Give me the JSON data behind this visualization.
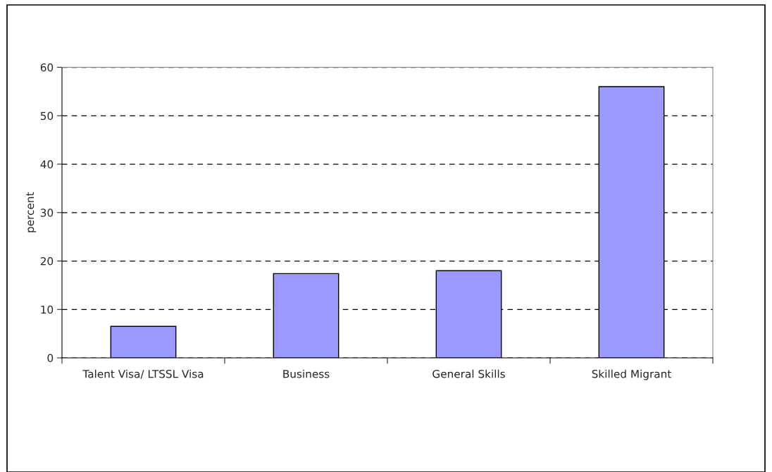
{
  "chart_data": {
    "type": "bar",
    "ylabel": "percent",
    "categories": [
      "Talent Visa/ LTSSL Visa",
      "Business",
      "General Skills",
      "Skilled Migrant"
    ],
    "values": [
      6.5,
      17.4,
      18.0,
      56.0
    ],
    "color": "#9999ff",
    "ylim": [
      0,
      60
    ],
    "yticks": [
      0,
      10,
      20,
      30,
      40,
      50,
      60
    ],
    "grid": "y",
    "legend": false
  }
}
